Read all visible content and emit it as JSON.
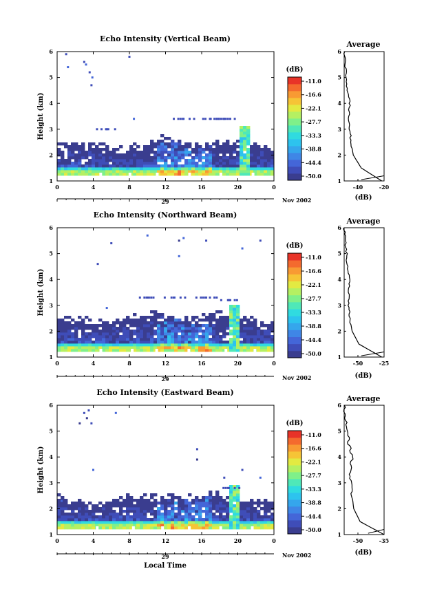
{
  "chart_data": [
    {
      "type": "heatmap",
      "title": "Echo Intensity (Vertical Beam)",
      "ylabel": "Height (km)",
      "yticks": [
        "1",
        "2",
        "3",
        "4",
        "5",
        "6"
      ],
      "ylim": [
        1,
        6
      ],
      "xticks": [
        "0",
        "4",
        "8",
        "12",
        "16",
        "20",
        "0"
      ],
      "xlim": [
        0,
        24
      ],
      "day_label": "29",
      "date_label": "Nov 2002",
      "x_title": "",
      "colorbar": {
        "unit": "(dB)",
        "ticks": [
          "-11.0",
          "-16.6",
          "-22.1",
          "-27.7",
          "-33.3",
          "-38.8",
          "-44.4",
          "-50.0"
        ]
      },
      "layer": {
        "base": 1.2,
        "top": 2.3,
        "patch_top": 3.1,
        "patch_x": 20.5
      },
      "sparse_echoes": [
        {
          "x": 1.0,
          "y": 5.9
        },
        {
          "x": 1.2,
          "y": 5.4
        },
        {
          "x": 3.0,
          "y": 5.6
        },
        {
          "x": 3.2,
          "y": 5.5
        },
        {
          "x": 3.6,
          "y": 5.2
        },
        {
          "x": 3.8,
          "y": 4.7
        },
        {
          "x": 8.0,
          "y": 5.8
        },
        {
          "x": 3.9,
          "y": 5.0
        }
      ],
      "mid_echoes": [
        {
          "x": 8.5,
          "y": 3.4
        },
        {
          "x": 17.0,
          "y": 3.4
        },
        {
          "x": 5.5,
          "y": 3.0
        },
        {
          "x": 14.0,
          "y": 3.4
        },
        {
          "x": 18.5,
          "y": 3.4
        }
      ],
      "average": {
        "title": "Average",
        "xlabel": "(dB)",
        "xticks": [
          "-40",
          "-20"
        ],
        "xlim": [
          -55,
          -20
        ],
        "profile_db": [
          -22,
          -40,
          -47,
          -49,
          -50,
          -51,
          -50,
          -52,
          -53,
          -54,
          -55
        ]
      }
    },
    {
      "type": "heatmap",
      "title": "Echo Intensity (Northward Beam)",
      "ylabel": "Height (km)",
      "yticks": [
        "1",
        "2",
        "3",
        "4",
        "5",
        "6"
      ],
      "ylim": [
        1,
        6
      ],
      "xticks": [
        "0",
        "4",
        "8",
        "12",
        "16",
        "20",
        "0"
      ],
      "xlim": [
        0,
        24
      ],
      "day_label": "29",
      "date_label": "Nov 2002",
      "x_title": "",
      "colorbar": {
        "unit": "(dB)",
        "ticks": [
          "-11.0",
          "-16.6",
          "-22.1",
          "-27.7",
          "-33.3",
          "-38.8",
          "-44.4",
          "-50.0"
        ]
      },
      "layer": {
        "base": 1.2,
        "top": 2.4,
        "patch_top": 3.0,
        "patch_x": 19.5
      },
      "sparse_echoes": [
        {
          "x": 6.0,
          "y": 5.4
        },
        {
          "x": 10.0,
          "y": 5.7
        },
        {
          "x": 13.5,
          "y": 5.5
        },
        {
          "x": 14.0,
          "y": 5.6
        },
        {
          "x": 16.5,
          "y": 5.5
        },
        {
          "x": 20.5,
          "y": 5.2
        },
        {
          "x": 22.5,
          "y": 5.5
        },
        {
          "x": 4.5,
          "y": 4.6
        },
        {
          "x": 13.5,
          "y": 4.9
        }
      ],
      "mid_echoes": [
        {
          "x": 5.5,
          "y": 2.9
        },
        {
          "x": 10.0,
          "y": 3.3
        },
        {
          "x": 13.0,
          "y": 3.3
        },
        {
          "x": 16.5,
          "y": 3.3
        },
        {
          "x": 19.0,
          "y": 3.2
        }
      ],
      "average": {
        "title": "Average",
        "xlabel": "(dB)",
        "xticks": [
          "-50",
          "-25"
        ],
        "xlim": [
          -55,
          -20
        ],
        "profile_db": [
          -22,
          -42,
          -48,
          -50,
          -51,
          -51,
          -50,
          -52,
          -53,
          -54,
          -55
        ]
      }
    },
    {
      "type": "heatmap",
      "title": "Echo Intensity (Eastward Beam)",
      "ylabel": "Height (km)",
      "yticks": [
        "1",
        "2",
        "3",
        "4",
        "5",
        "6"
      ],
      "ylim": [
        1,
        6
      ],
      "xticks": [
        "0",
        "4",
        "8",
        "12",
        "16",
        "20",
        "0"
      ],
      "xlim": [
        0,
        24
      ],
      "day_label": "29",
      "date_label": "Nov 2002",
      "x_title": "Local Time",
      "colorbar": {
        "unit": "(dB)",
        "ticks": [
          "-11.0",
          "-16.6",
          "-22.1",
          "-27.7",
          "-33.3",
          "-38.8",
          "-44.4",
          "-50.0"
        ]
      },
      "layer": {
        "base": 1.2,
        "top": 2.3,
        "patch_top": 2.9,
        "patch_x": 19.5
      },
      "sparse_echoes": [
        {
          "x": 3.0,
          "y": 5.7
        },
        {
          "x": 3.5,
          "y": 5.8
        },
        {
          "x": 3.3,
          "y": 5.5
        },
        {
          "x": 2.5,
          "y": 5.3
        },
        {
          "x": 3.8,
          "y": 5.3
        },
        {
          "x": 6.5,
          "y": 5.7
        },
        {
          "x": 15.5,
          "y": 4.3
        },
        {
          "x": 15.5,
          "y": 3.9
        },
        {
          "x": 4.0,
          "y": 3.5
        },
        {
          "x": 18.5,
          "y": 3.2
        },
        {
          "x": 20.5,
          "y": 3.5
        },
        {
          "x": 22.5,
          "y": 3.2
        }
      ],
      "mid_echoes": [
        {
          "x": 0.5,
          "y": 2.3
        },
        {
          "x": 19.0,
          "y": 2.8
        }
      ],
      "average": {
        "title": "Average",
        "xlabel": "(dB)",
        "xticks": [
          "-50",
          "-35"
        ],
        "xlim": [
          -55,
          -30
        ],
        "profile_db": [
          -30,
          -45,
          -49,
          -50,
          -51,
          -51,
          -50,
          -52,
          -53,
          -54,
          -55
        ]
      }
    }
  ]
}
